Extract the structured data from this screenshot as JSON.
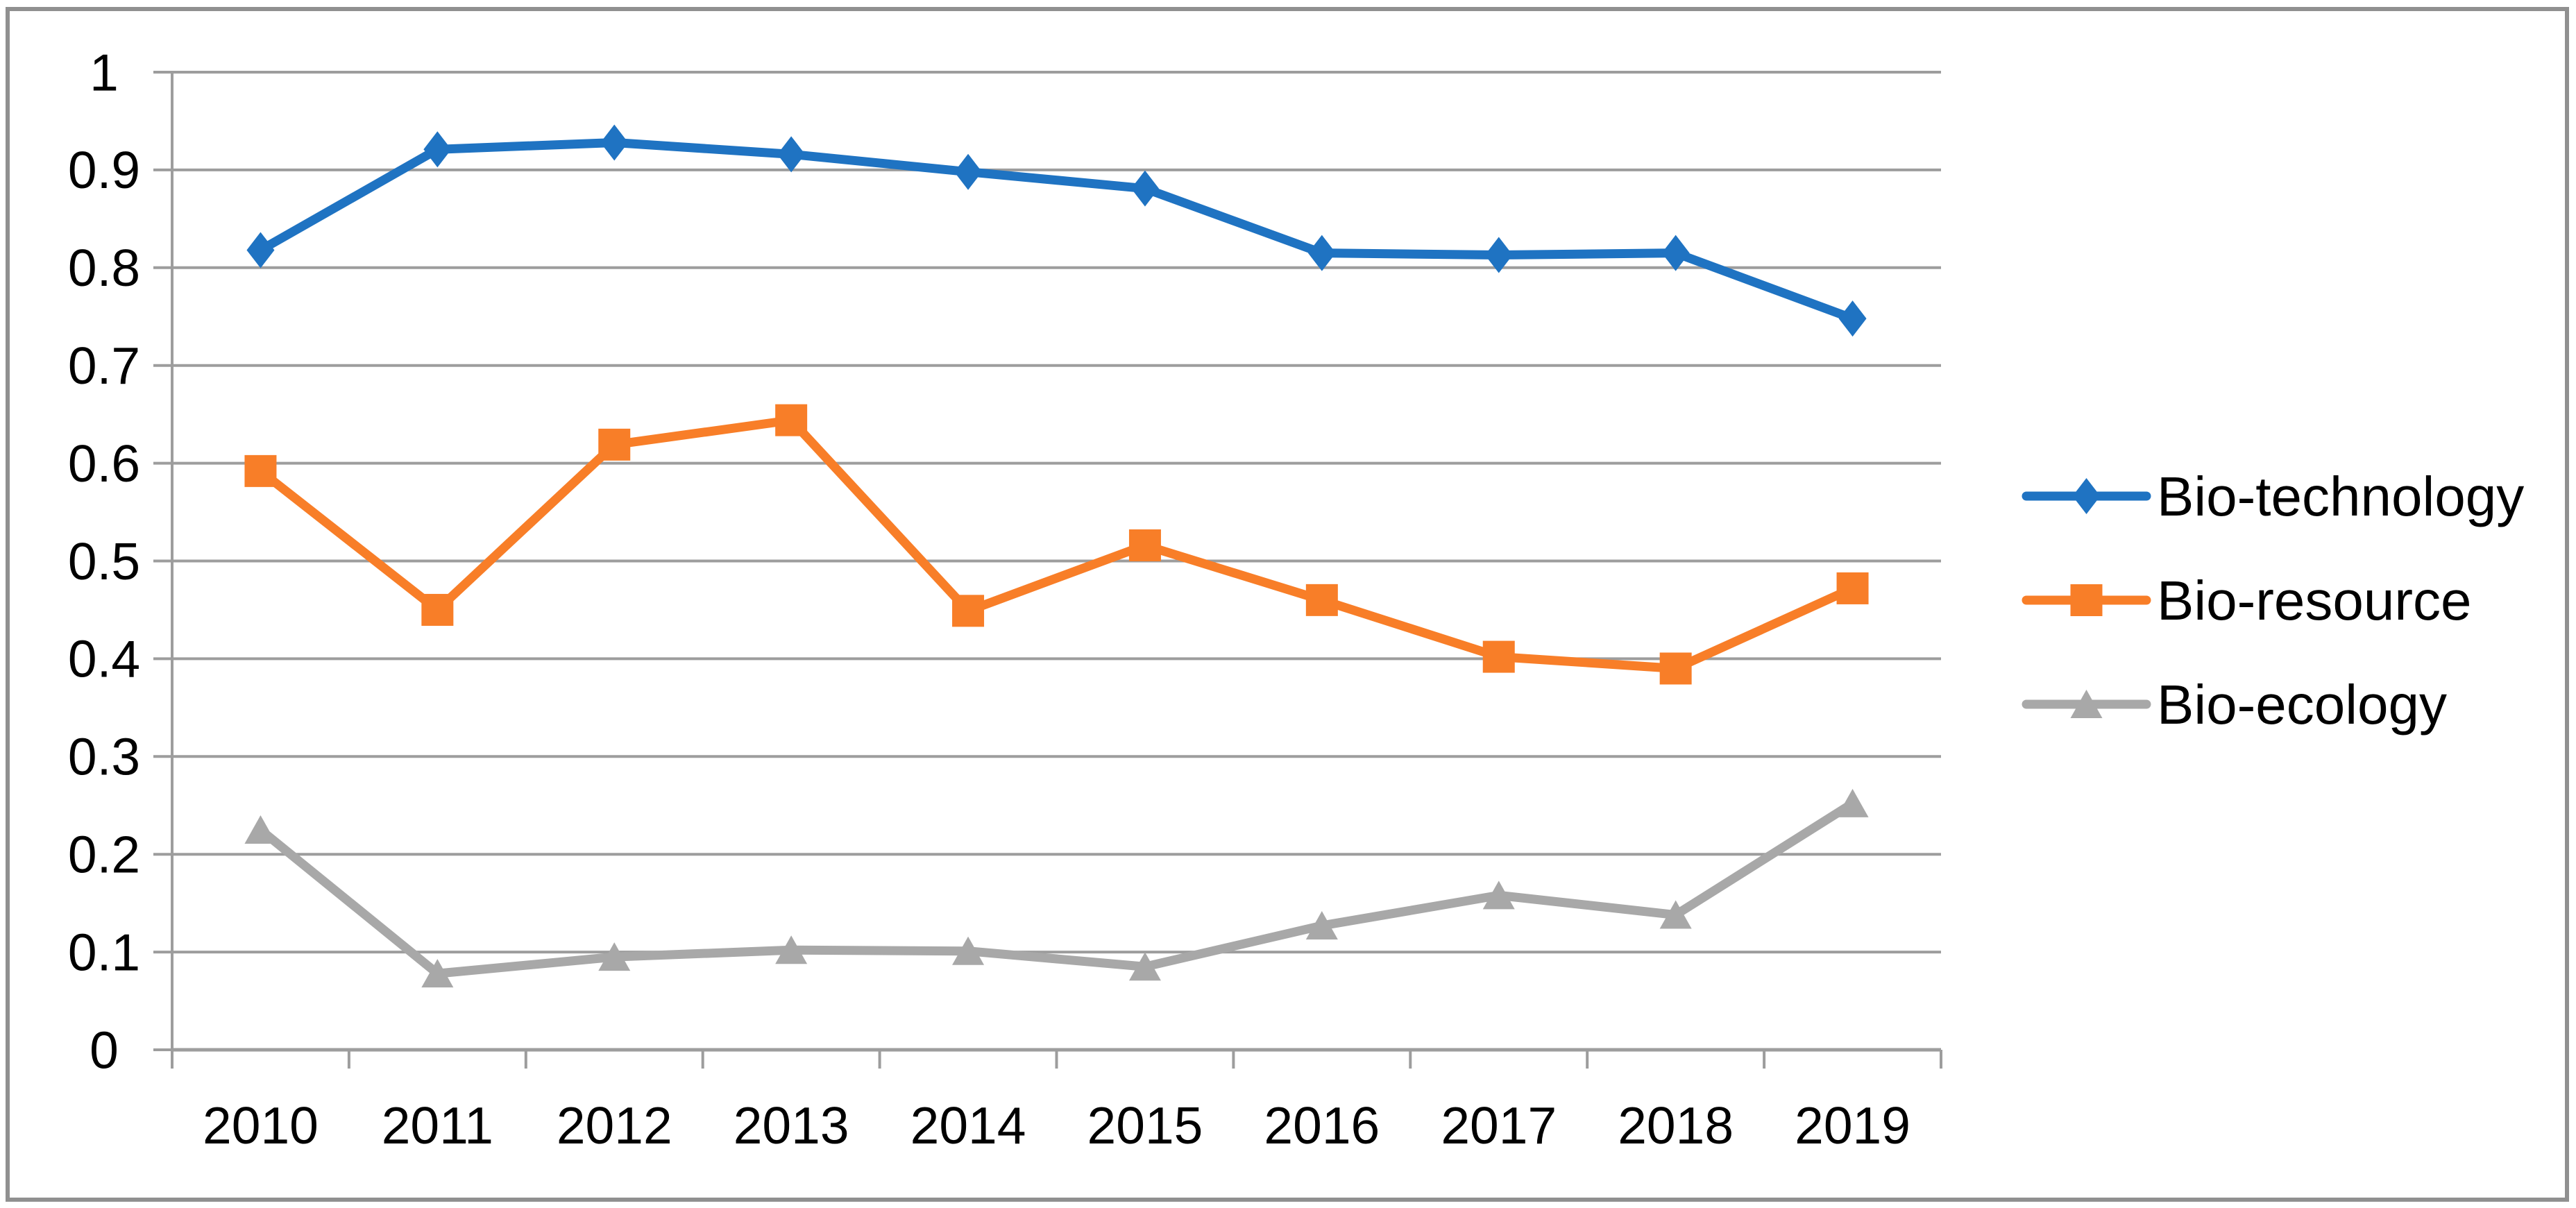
{
  "chart_data": {
    "type": "line",
    "title": "",
    "xlabel": "",
    "ylabel": "",
    "categories": [
      "2010",
      "2011",
      "2012",
      "2013",
      "2014",
      "2015",
      "2016",
      "2017",
      "2018",
      "2019"
    ],
    "series": [
      {
        "name": "Bio-technology",
        "marker": "diamond",
        "color": "#1F73C2",
        "values": [
          0.818,
          0.921,
          0.928,
          0.916,
          0.898,
          0.881,
          0.815,
          0.813,
          0.815,
          0.748
        ]
      },
      {
        "name": "Bio-resource",
        "marker": "square",
        "color": "#F87E28",
        "values": [
          0.592,
          0.45,
          0.619,
          0.644,
          0.449,
          0.516,
          0.46,
          0.402,
          0.39,
          0.472
        ]
      },
      {
        "name": "Bio-ecology",
        "marker": "triangle",
        "color": "#A8A8A8",
        "values": [
          0.225,
          0.078,
          0.095,
          0.102,
          0.101,
          0.085,
          0.127,
          0.158,
          0.138,
          0.252
        ]
      }
    ],
    "y_ticks": [
      "0",
      "0.1",
      "0.2",
      "0.3",
      "0.4",
      "0.5",
      "0.6",
      "0.7",
      "0.8",
      "0.9",
      "1"
    ],
    "ylim": [
      0,
      1
    ],
    "grid": true,
    "legend_position": "right"
  },
  "style": {
    "background": "#FFFFFF",
    "grid_color": "#9D9D9D",
    "axis_color": "#9D9D9D",
    "frame_color": "#909090",
    "text_color": "#000000"
  }
}
